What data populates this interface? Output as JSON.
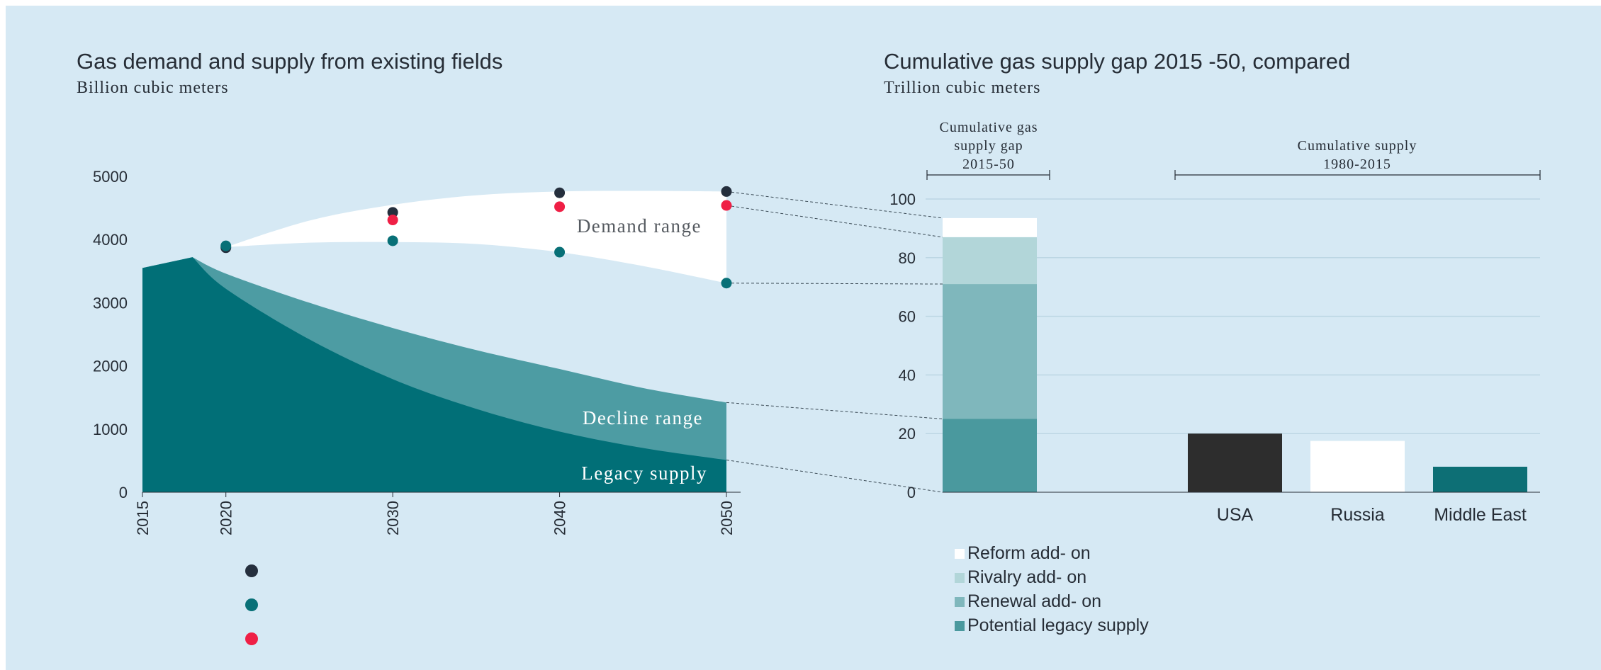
{
  "colors": {
    "background": "#d6e9f4",
    "legacy": "#016f77",
    "decline": "#4d9ca3",
    "demand": "#ffffff",
    "dot_dark": "#252f3d",
    "dot_teal": "#087077",
    "dot_red": "#ef1f45",
    "reform": "#ffffff",
    "rivalry": "#b2d6d9",
    "renewal": "#7fb7bc",
    "potential_legacy": "#4a999e",
    "usa": "#2d2d2d",
    "russia": "#ffffff",
    "middle_east": "#0d6f75",
    "grid": "#bcd6e3",
    "axis": "#262d36"
  },
  "chart_data": [
    {
      "type": "area",
      "title": "Gas demand and supply from existing fields",
      "subtitle": "Billion cubic meters",
      "xlabel": "",
      "ylabel": "",
      "xlim": [
        2015,
        2050
      ],
      "ylim": [
        0,
        5000
      ],
      "x_ticks": [
        "2015",
        "2020",
        "2030",
        "2040",
        "2050"
      ],
      "y_ticks": [
        "0",
        "1000",
        "2000",
        "3000",
        "4000",
        "5000"
      ],
      "grid": false,
      "areas": [
        {
          "name": "Demand range",
          "label": "Demand range",
          "upper": {
            "x": [
              2020,
              2025,
              2030,
              2035,
              2040,
              2045,
              2050
            ],
            "y": [
              3880,
              4300,
              4550,
              4700,
              4760,
              4770,
              4760
            ]
          },
          "lower": {
            "x": [
              2020,
              2025,
              2030,
              2035,
              2040,
              2045,
              2050
            ],
            "y": [
              3880,
              3950,
              3960,
              3930,
              3800,
              3580,
              3310
            ]
          }
        },
        {
          "name": "Decline range",
          "label": "Decline range",
          "x": [
            2015,
            2018,
            2020,
            2025,
            2030,
            2035,
            2040,
            2045,
            2050
          ],
          "y": [
            3550,
            3720,
            3460,
            3000,
            2600,
            2250,
            1950,
            1650,
            1420
          ]
        },
        {
          "name": "Legacy supply",
          "label": "Legacy supply",
          "x": [
            2015,
            2018,
            2020,
            2025,
            2030,
            2035,
            2040,
            2045,
            2050
          ],
          "y": [
            3550,
            3720,
            3220,
            2420,
            1790,
            1320,
            960,
            700,
            510
          ]
        }
      ],
      "scatter": [
        {
          "color_key": "dot_dark",
          "x": [
            2020,
            2030,
            2040,
            2050
          ],
          "y": [
            3870,
            4430,
            4740,
            4760
          ]
        },
        {
          "color_key": "dot_red",
          "x": [
            2030,
            2040,
            2050
          ],
          "y": [
            4310,
            4520,
            4540
          ]
        },
        {
          "color_key": "dot_teal",
          "x": [
            2020,
            2030,
            2040,
            2050
          ],
          "y": [
            3900,
            3980,
            3800,
            3310
          ]
        }
      ],
      "legend_markers": [
        "dot_dark",
        "dot_teal",
        "dot_red"
      ]
    },
    {
      "type": "bar",
      "title": "Cumulative gas supply gap 2015 -50, compared",
      "subtitle": "Trillion cubic meters",
      "xlabel": "",
      "ylabel": "",
      "ylim": [
        0,
        100
      ],
      "y_ticks": [
        "0",
        "20",
        "40",
        "60",
        "80",
        "100"
      ],
      "grid": true,
      "stacked_bar": {
        "series": [
          {
            "name": "Potential legacy supply",
            "value": 25,
            "color_key": "potential_legacy"
          },
          {
            "name": "Renewal add- on",
            "value": 46,
            "color_key": "renewal"
          },
          {
            "name": "Rivalry add- on",
            "value": 16,
            "color_key": "rivalry"
          },
          {
            "name": "Reform add- on",
            "value": 6.5,
            "color_key": "reform"
          }
        ]
      },
      "categories": [
        "USA",
        "Russia",
        "Middle East"
      ],
      "values": [
        20,
        17.5,
        8.7
      ],
      "category_color_keys": [
        "usa",
        "russia",
        "middle_east"
      ],
      "brackets": [
        {
          "lines": [
            "Cumulative gas",
            "supply gap",
            "2015-50"
          ]
        },
        {
          "lines": [
            "Cumulative supply",
            "1980-2015"
          ]
        }
      ],
      "legend": {
        "placement": "bottom-left",
        "items": [
          "Reform add- on",
          "Rivalry add- on",
          "Renewal add- on",
          "Potential legacy supply"
        ],
        "color_keys": [
          "reform",
          "rivalry",
          "renewal",
          "potential_legacy"
        ]
      }
    }
  ]
}
